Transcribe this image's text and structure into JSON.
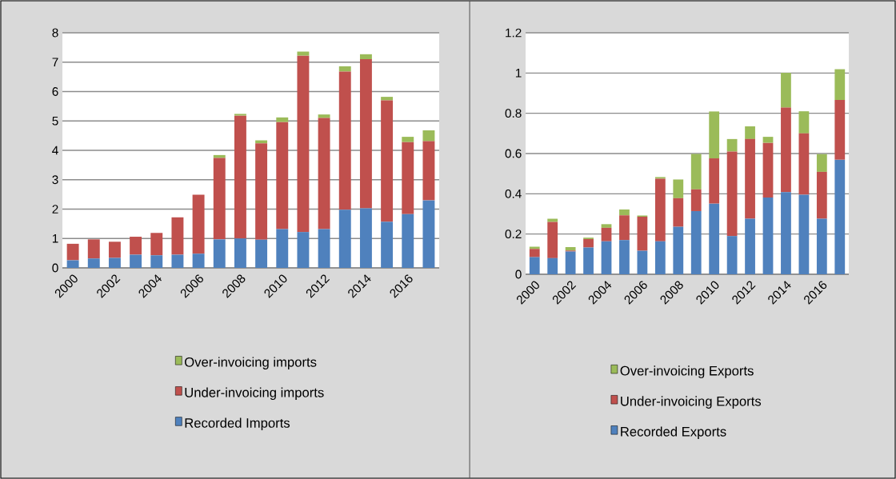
{
  "chart_data": [
    {
      "type": "bar",
      "stacked": true,
      "grid": "y",
      "legend": "bottom",
      "categories": [
        "2000",
        null,
        "2002",
        null,
        "2004",
        null,
        "2006",
        null,
        "2008",
        null,
        "2010",
        null,
        "2012",
        null,
        "2014",
        null,
        "2016",
        null
      ],
      "ylim": [
        0,
        8
      ],
      "yticks": [
        0,
        1,
        2,
        3,
        4,
        5,
        6,
        7,
        8
      ],
      "series": [
        {
          "name": "Recorded Imports",
          "color": "#4f81bd",
          "values": [
            0.26,
            0.32,
            0.34,
            0.45,
            0.43,
            0.45,
            0.48,
            0.97,
            1.0,
            0.96,
            1.32,
            1.22,
            1.32,
            1.98,
            2.03,
            1.57,
            1.83,
            2.3
          ]
        },
        {
          "name": "Under-invoicing imports",
          "color": "#c0504d",
          "values": [
            0.56,
            0.65,
            0.55,
            0.61,
            0.76,
            1.27,
            2.01,
            2.77,
            4.18,
            3.28,
            3.64,
            6.0,
            3.78,
            4.7,
            5.07,
            4.13,
            2.45,
            2.01
          ]
        },
        {
          "name": "Over-invoicing imports",
          "color": "#9bbb59",
          "values": [
            0,
            0,
            0,
            0,
            0,
            0,
            0,
            0.1,
            0.06,
            0.1,
            0.16,
            0.14,
            0.12,
            0.18,
            0.17,
            0.12,
            0.18,
            0.37
          ]
        }
      ]
    },
    {
      "type": "bar",
      "stacked": true,
      "grid": "y",
      "legend": "bottom",
      "categories": [
        "2000",
        null,
        "2002",
        null,
        "2004",
        null,
        "2006",
        null,
        "2008",
        null,
        "2010",
        null,
        "2012",
        null,
        "2014",
        null,
        "2016",
        null
      ],
      "ylim": [
        0,
        1.2
      ],
      "yticks": [
        0,
        0.2,
        0.4,
        0.6,
        0.8,
        1,
        1.2
      ],
      "series": [
        {
          "name": "Recorded Exports",
          "color": "#4f81bd",
          "values": [
            0.085,
            0.08,
            0.113,
            0.133,
            0.164,
            0.17,
            0.117,
            0.164,
            0.236,
            0.314,
            0.351,
            0.19,
            0.276,
            0.381,
            0.408,
            0.395,
            0.276,
            0.569
          ]
        },
        {
          "name": "Under-invoicing Exports",
          "color": "#c0504d",
          "values": [
            0.041,
            0.18,
            0.005,
            0.042,
            0.067,
            0.123,
            0.169,
            0.311,
            0.142,
            0.108,
            0.225,
            0.42,
            0.396,
            0.272,
            0.42,
            0.305,
            0.233,
            0.297
          ]
        },
        {
          "name": "Over-invoicing Exports",
          "color": "#9bbb59",
          "values": [
            0.011,
            0.016,
            0.017,
            0.007,
            0.018,
            0.029,
            0.006,
            0.008,
            0.093,
            0.176,
            0.233,
            0.062,
            0.063,
            0.03,
            0.173,
            0.11,
            0.088,
            0.153
          ]
        }
      ]
    }
  ]
}
